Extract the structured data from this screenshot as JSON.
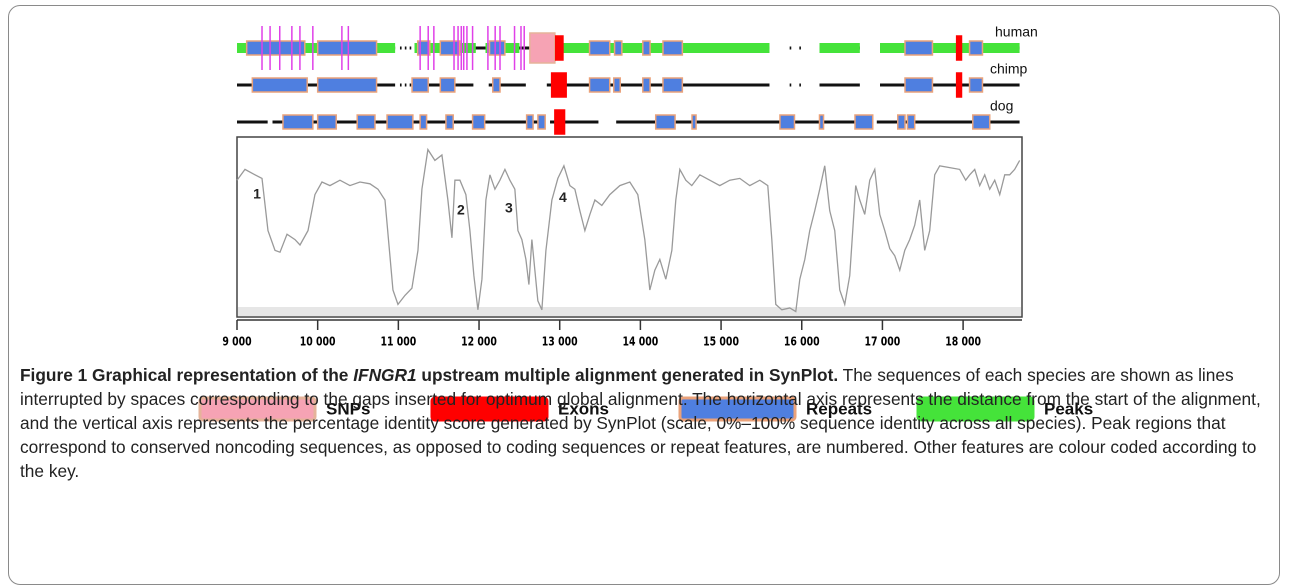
{
  "chart_data": {
    "type": "line",
    "xlim": [
      9000,
      18730
    ],
    "ylim": [
      0,
      100
    ],
    "xticks": [
      {
        "value": 9000,
        "label": "9 000"
      },
      {
        "value": 10000,
        "label": "10 000"
      },
      {
        "value": 11000,
        "label": "11 000"
      },
      {
        "value": 12000,
        "label": "12 000"
      },
      {
        "value": 13000,
        "label": "13 000"
      },
      {
        "value": 14000,
        "label": "14 000"
      },
      {
        "value": 15000,
        "label": "15 000"
      },
      {
        "value": 16000,
        "label": "16 000"
      },
      {
        "value": 17000,
        "label": "17 000"
      },
      {
        "value": 18000,
        "label": "18 000"
      }
    ],
    "color": "#9a9a9a",
    "x": [
      9000,
      9099,
      9223,
      9310,
      9384,
      9471,
      9533,
      9620,
      9719,
      9781,
      9880,
      9966,
      10053,
      10152,
      10276,
      10400,
      10524,
      10648,
      10747,
      10834,
      10933,
      10995,
      11082,
      11168,
      11243,
      11292,
      11366,
      11453,
      11540,
      11614,
      11664,
      11701,
      11763,
      11837,
      11887,
      11936,
      11986,
      12036,
      12085,
      12135,
      12197,
      12259,
      12321,
      12382,
      12444,
      12482,
      12531,
      12581,
      12618,
      12655,
      12692,
      12729,
      12779,
      12829,
      12903,
      12977,
      13052,
      13126,
      13188,
      13250,
      13312,
      13374,
      13436,
      13522,
      13621,
      13745,
      13869,
      13968,
      14055,
      14117,
      14179,
      14241,
      14315,
      14390,
      14439,
      14489,
      14563,
      14637,
      14737,
      14860,
      14984,
      15108,
      15232,
      15356,
      15480,
      15579,
      15629,
      15678,
      15753,
      15852,
      15926,
      15976,
      16038,
      16099,
      16161,
      16223,
      16285,
      16347,
      16409,
      16471,
      16533,
      16595,
      16632,
      16669,
      16719,
      16781,
      16843,
      16905,
      16967,
      17029,
      17091,
      17153,
      17215,
      17277,
      17338,
      17400,
      17462,
      17524,
      17586,
      17648,
      17710,
      17834,
      17958,
      18032,
      18082,
      18144,
      18206,
      18268,
      18330,
      18392,
      18454,
      18516,
      18577,
      18639,
      18701
    ],
    "values": [
      76,
      82,
      79,
      77,
      48,
      37,
      36,
      46,
      43,
      40,
      48,
      68,
      75,
      73,
      76,
      73,
      75,
      74,
      71,
      65,
      15,
      7,
      12,
      16,
      37,
      71,
      93,
      87,
      90,
      65,
      44,
      76,
      76,
      68,
      48,
      23,
      4,
      21,
      65,
      79,
      71,
      76,
      82,
      76,
      71,
      48,
      43,
      32,
      18,
      43,
      26,
      9,
      4,
      37,
      65,
      77,
      84,
      73,
      71,
      59,
      48,
      57,
      65,
      62,
      68,
      73,
      75,
      68,
      43,
      15,
      26,
      32,
      21,
      37,
      65,
      82,
      76,
      73,
      79,
      76,
      73,
      76,
      77,
      73,
      76,
      73,
      43,
      7,
      4,
      5,
      3,
      21,
      32,
      48,
      59,
      71,
      84,
      59,
      48,
      15,
      7,
      23,
      48,
      73,
      65,
      57,
      76,
      82,
      57,
      48,
      38,
      34,
      26,
      37,
      43,
      51,
      65,
      37,
      48,
      79,
      84,
      83,
      82,
      76,
      79,
      82,
      73,
      79,
      71,
      76,
      68,
      79,
      79,
      82,
      87
    ],
    "annotations": [
      {
        "text": "1",
        "x": 9248,
        "y": 68
      },
      {
        "text": "2",
        "x": 11775,
        "y": 59
      },
      {
        "text": "3",
        "x": 12370,
        "y": 60
      },
      {
        "text": "4",
        "x": 13039,
        "y": 66
      }
    ],
    "legend": [
      {
        "name": "SNPs",
        "color": "#f6a3b4",
        "border": "#e5b39a"
      },
      {
        "name": "Exons",
        "color": "#ff0000",
        "border": "#ff0000"
      },
      {
        "name": "Repeats",
        "color": "#4f7fe0",
        "border": "#eaa27a"
      },
      {
        "name": "Peaks",
        "color": "#45e33a",
        "border": "#45e33a"
      }
    ],
    "tracks": [
      {
        "name": "human",
        "line": [
          [
            9000,
            10960
          ],
          [
            11020,
            11040
          ],
          [
            11080,
            11100
          ],
          [
            11140,
            11160
          ],
          [
            11200,
            12820
          ],
          [
            12940,
            15600
          ],
          [
            15850,
            15870
          ],
          [
            15970,
            15990
          ],
          [
            16220,
            16720
          ],
          [
            16970,
            18700
          ]
        ],
        "spans": [
          [
            [
              12630,
              12940
            ]
          ],
          [
            [
              12950,
              13040
            ],
            [
              17920,
              17980
            ]
          ],
          [
            [
              9120,
              9840
            ],
            [
              10000,
              10730
            ],
            [
              11240,
              11390
            ],
            [
              11520,
              11760
            ],
            [
              12130,
              12320
            ],
            [
              13370,
              13620
            ],
            [
              13680,
              13770
            ],
            [
              14030,
              14120
            ],
            [
              14280,
              14520
            ],
            [
              17280,
              17620
            ],
            [
              18080,
              18240
            ]
          ],
          [
            [
              9000,
              10960
            ],
            [
              11200,
              11960
            ],
            [
              12080,
              12500
            ],
            [
              12940,
              15600
            ],
            [
              16220,
              16720
            ],
            [
              16970,
              18700
            ]
          ]
        ],
        "snp_lines": [
          9310,
          9410,
          9530,
          9680,
          9780,
          9940,
          10300,
          10380,
          11270,
          11370,
          11440,
          11690,
          11740,
          11780,
          11810,
          11850,
          11920,
          12110,
          12200,
          12260,
          12440,
          12520,
          12560
        ]
      },
      {
        "name": "chimp",
        "line": [
          [
            9000,
            10960
          ],
          [
            11020,
            11040
          ],
          [
            11080,
            11100
          ],
          [
            11140,
            11160
          ],
          [
            11200,
            11930
          ],
          [
            12120,
            12580
          ],
          [
            12840,
            15600
          ],
          [
            15850,
            15870
          ],
          [
            15970,
            15990
          ],
          [
            16220,
            16720
          ],
          [
            16970,
            18700
          ]
        ],
        "spans": [
          [],
          [
            [
              12900,
              13080
            ],
            [
              17920,
              17980
            ]
          ],
          [
            [
              9190,
              9870
            ],
            [
              10000,
              10730
            ],
            [
              11170,
              11370
            ],
            [
              11520,
              11700
            ],
            [
              12170,
              12260
            ],
            [
              13370,
              13620
            ],
            [
              13670,
              13750
            ],
            [
              14030,
              14120
            ],
            [
              14280,
              14520
            ],
            [
              17280,
              17620
            ],
            [
              18080,
              18240
            ]
          ],
          []
        ],
        "snp_lines": []
      },
      {
        "name": "dog",
        "line": [
          [
            9000,
            9380
          ],
          [
            9440,
            12820
          ],
          [
            12880,
            13480
          ],
          [
            13700,
            16860
          ],
          [
            16930,
            18700
          ]
        ],
        "spans": [
          [],
          [
            [
              12940,
              13060
            ]
          ],
          [
            [
              9570,
              9940
            ],
            [
              10000,
              10230
            ],
            [
              10490,
              10710
            ],
            [
              10860,
              11180
            ],
            [
              11270,
              11350
            ],
            [
              11590,
              11680
            ],
            [
              11920,
              12070
            ],
            [
              12590,
              12670
            ],
            [
              12730,
              12820
            ],
            [
              14190,
              14430
            ],
            [
              14640,
              14690
            ],
            [
              15730,
              15910
            ],
            [
              16220,
              16270
            ],
            [
              16660,
              16880
            ],
            [
              17190,
              17280
            ],
            [
              17310,
              17400
            ],
            [
              18120,
              18330
            ]
          ],
          []
        ],
        "snp_lines": []
      }
    ]
  },
  "caption": {
    "title_parts": [
      "Figure 1 Graphical representation of the ",
      "IFNGR1",
      " upstream multiple alignment generated in SynPlot."
    ],
    "text": "The sequences of each species are shown as lines interrupted by spaces corresponding to the gaps inserted for optimum global alignment. The horizontal axis represents the distance from the start of the alignment, and the vertical axis represents the percentage identity score generated by SynPlot (scale, 0%–100% sequence identity across all species). Peak regions that correspond to conserved noncoding sequences, as opposed to coding sequences or repeat features, are numbered. Other features are colour coded according to the key."
  }
}
